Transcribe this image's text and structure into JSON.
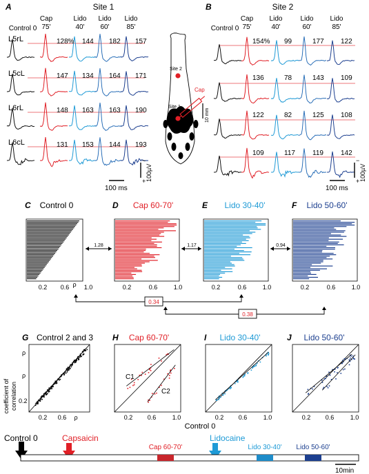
{
  "colors": {
    "control": "#111111",
    "cap": "#e01f26",
    "lido40": "#1e9ad6",
    "lido_mid": "#2a6fb8",
    "lido85": "#1c3f8f",
    "ref_line": "#e8474c"
  },
  "panelA": {
    "letter": "A",
    "title": "Site 1",
    "conditions": [
      {
        "top": "Control 0",
        "bottom": ""
      },
      {
        "top": "Cap",
        "bottom": "75'"
      },
      {
        "top": "Lido",
        "bottom": "40'"
      },
      {
        "top": "Lido",
        "bottom": "60'"
      },
      {
        "top": "Lido",
        "bottom": "85'"
      }
    ],
    "rows": [
      {
        "label": "L5rL",
        "values": [
          "128%",
          "144",
          "182",
          "157"
        ]
      },
      {
        "label": "L5cL",
        "values": [
          "147",
          "134",
          "164",
          "171"
        ]
      },
      {
        "label": "L6rL",
        "values": [
          "148",
          "163",
          "163",
          "190"
        ]
      },
      {
        "label": "L6cL",
        "values": [
          "131",
          "153",
          "144",
          "193"
        ]
      }
    ],
    "time_scale": "100 ms",
    "volt_scale": "100µV",
    "minus": "−",
    "plus": "+"
  },
  "panelB": {
    "letter": "B",
    "title": "Site 2",
    "conditions": [
      {
        "top": "Control 0",
        "bottom": ""
      },
      {
        "top": "Cap",
        "bottom": "75'"
      },
      {
        "top": "Lido",
        "bottom": "40'"
      },
      {
        "top": "Lido",
        "bottom": "60'"
      },
      {
        "top": "Lido",
        "bottom": "85'"
      }
    ],
    "rows": [
      {
        "values": [
          "154%",
          "99",
          "177",
          "122"
        ]
      },
      {
        "values": [
          "136",
          "78",
          "143",
          "109"
        ]
      },
      {
        "values": [
          "122",
          "82",
          "125",
          "108"
        ]
      },
      {
        "values": [
          "109",
          "117",
          "119",
          "142"
        ]
      }
    ],
    "time_scale": "100 ms",
    "volt_scale": "100µV",
    "minus": "−",
    "plus": "+"
  },
  "schematic": {
    "site2": "Site 2",
    "site1": "Site 1",
    "cap": "Cap",
    "scale": "10 mm"
  },
  "row2": {
    "panels": [
      {
        "letter": "C",
        "title": "Control 0",
        "ticks": [
          "0.2",
          "0.6",
          "ρ",
          "1.0"
        ]
      },
      {
        "letter": "D",
        "title": "Cap 60-70'",
        "ticks": [
          "0.2",
          "0.6",
          "1.0"
        ]
      },
      {
        "letter": "E",
        "title": "Lido 30-40'",
        "ticks": [
          "0.2",
          "0.6",
          "1.0"
        ]
      },
      {
        "letter": "F",
        "title": "Lido 50-60'",
        "ticks": [
          "0.2",
          "0.6",
          "1.0"
        ]
      }
    ],
    "ratios": [
      "1.28",
      "1.17",
      "0.94"
    ],
    "boxed": [
      "0.34",
      "0.38"
    ]
  },
  "row3": {
    "panels": [
      {
        "letter": "G",
        "title": "Control 2 and 3",
        "ticks": [
          "0.2",
          "0.6",
          "ρ"
        ]
      },
      {
        "letter": "H",
        "title": "Cap 60-70'",
        "ticks": [
          "0.2",
          "0.6",
          "1.0"
        ],
        "c1": "C1",
        "c2": "C2"
      },
      {
        "letter": "I",
        "title": "Lido 30-40'",
        "ticks": [
          "0.2",
          "0.6",
          "1.0"
        ]
      },
      {
        "letter": "J",
        "title": "Lido 50-60'",
        "ticks": [
          "0.2",
          "0.6",
          "1.0"
        ]
      }
    ],
    "ylabel_line1": "coefficient of",
    "ylabel_line2": "correlation",
    "yticks": [
      "ρ",
      "ρ",
      "0.2"
    ],
    "xlabel": "Control 0"
  },
  "timeline": {
    "control": "Control 0",
    "capsaicin": "Capsaicin",
    "lidocaine": "Lidocaine",
    "cap_block": "Cap 60-70'",
    "lido1_block": "Lido 30-40'",
    "lido2_block": "Lido 50-60'",
    "scale": "10min"
  }
}
